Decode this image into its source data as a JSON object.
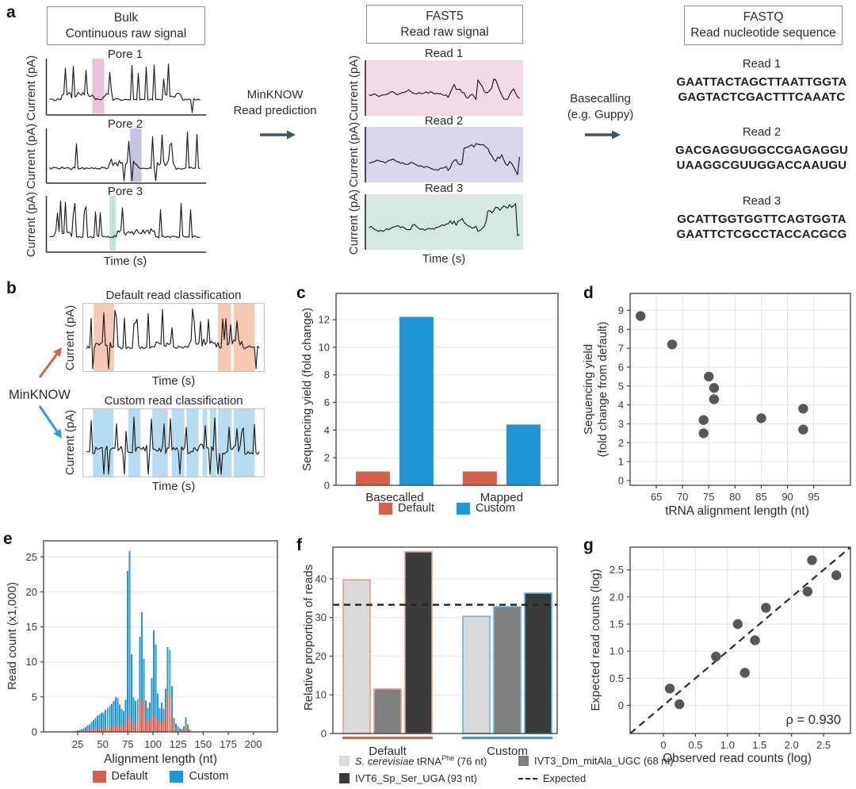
{
  "colors": {
    "default_red": "#D4604B",
    "custom_blue": "#1E97D4",
    "dot_gray": "#575757",
    "arrow_dark": "#3E5364",
    "arrow_red": "#D6604C",
    "arrow_blue": "#2D9FE0",
    "band_pink": "#EAC2DB",
    "bg_pink": "#F2DAE8",
    "band_purple": "#C5C4E1",
    "bg_purple": "#D7D6EB",
    "band_teal": "#C0E2D7",
    "bg_teal": "#D5E9E2",
    "band_salmon": "#F7C9B5",
    "band_lightblue": "#B5DCF2",
    "bar_light": "#D9D9D9",
    "bar_mid": "#7F7F7F",
    "bar_dark": "#3B3B3B",
    "outline_salmon": "#E89A89",
    "outline_blue": "#62B5E5",
    "trace": "#1C1C1C",
    "grid": "#E6E6E6",
    "axis": "#3F3F3F"
  },
  "panel_labels": {
    "a": "a",
    "b": "b",
    "c": "c",
    "d": "d",
    "e": "e",
    "f": "f",
    "g": "g"
  },
  "panel_a": {
    "bulk_box": [
      "Bulk",
      "Continuous raw signal"
    ],
    "fast5_box": [
      "FAST5",
      "Read raw signal"
    ],
    "fastq_box": [
      "FASTQ",
      "Read nucleotide sequence"
    ],
    "current_label": "Current (pA)",
    "time_label": "Time (s)",
    "pores": [
      {
        "title": "Pore 1"
      },
      {
        "title": "Pore 2"
      },
      {
        "title": "Pore 3"
      }
    ],
    "reads": [
      {
        "title": "Read 1"
      },
      {
        "title": "Read 2"
      },
      {
        "title": "Read 3"
      }
    ],
    "minknow": [
      "MinKNOW",
      "Read prediction"
    ],
    "basecalling": [
      "Basecalling",
      "(e.g. Guppy)"
    ],
    "fastq_reads": [
      {
        "title": "Read 1",
        "lines": [
          "GAATTACTAGCTTAATTGGTA",
          "GAGTACTCGACTTTCAAATC"
        ]
      },
      {
        "title": "Read 2",
        "lines": [
          "GACGAGGUGGCCGAGAGGU",
          "UAAGGCGUUGGACCAAUGU"
        ]
      },
      {
        "title": "Read 3",
        "lines": [
          "GCATTGGTGGTTCAGTGGTA",
          "GAATTCTCGCCTACCACGCG"
        ]
      }
    ]
  },
  "panel_b": {
    "default_title": "Default read classification",
    "custom_title": "Custom read classification",
    "minknow": "MinKNOW",
    "current_label": "Current (pA)",
    "time_label": "Time (s)"
  },
  "panel_f_legend": {
    "item1": {
      "species": "S. cerevisiae",
      "mid": " tRNA",
      "sup": "Phe",
      "suffix": " (76 nt)"
    },
    "item2": "IVT3_Dm_mitAla_UGC (68 nt)",
    "item3": "IVT6_Sp_Ser_UGA (93 nt)",
    "item4": "Expected"
  },
  "chart_data": [
    {
      "id": "c",
      "type": "bar",
      "ylabel": "Sequencing yield (fold change)",
      "categories": [
        "Basecalled",
        "Mapped"
      ],
      "series": [
        {
          "name": "Default",
          "color_key": "default_red",
          "values": [
            1.0,
            1.0
          ]
        },
        {
          "name": "Custom",
          "color_key": "custom_blue",
          "values": [
            12.2,
            4.4
          ]
        }
      ],
      "yticks": [
        0,
        2,
        4,
        6,
        8,
        10,
        12
      ],
      "ylim": [
        0,
        13.9
      ],
      "grid": "horizontal",
      "legend_position": "bottom"
    },
    {
      "id": "d",
      "type": "scatter",
      "xlabel": "tRNA alignment length (nt)",
      "ylabel_lines": [
        "Sequencing yield",
        "(fold change from default)"
      ],
      "points": [
        [
          62,
          8.7
        ],
        [
          68,
          7.2
        ],
        [
          74,
          3.2
        ],
        [
          74,
          2.5
        ],
        [
          75,
          5.5
        ],
        [
          76,
          4.9
        ],
        [
          76,
          4.3
        ],
        [
          85,
          3.3
        ],
        [
          93,
          3.8
        ],
        [
          93,
          2.7
        ]
      ],
      "xticks": [
        65,
        70,
        75,
        80,
        85,
        90,
        95
      ],
      "yticks": [
        0,
        1,
        2,
        3,
        4,
        5,
        6,
        7,
        8,
        9
      ],
      "xlim": [
        60,
        102
      ],
      "ylim": [
        -0.25,
        9.9
      ],
      "grid": "both"
    },
    {
      "id": "e",
      "type": "histogram",
      "ylabel": "Read count (x1,000)",
      "xlabel": "Alignment length (nt)",
      "bin_start": 20,
      "bin_width": 2,
      "series": [
        {
          "name": "Default",
          "color_key": "default_red",
          "values": [
            0.05,
            0.05,
            0.1,
            0.1,
            0.15,
            0.2,
            0.25,
            0.3,
            0.35,
            0.4,
            0.45,
            0.5,
            0.55,
            0.6,
            0.6,
            0.65,
            0.7,
            0.7,
            0.75,
            0.8,
            0.9,
            1.0,
            1.0,
            0.9,
            0.8,
            0.9,
            1.0,
            2.3,
            2.2,
            1.3,
            1.0,
            1.2,
            1.5,
            4.0,
            5.0,
            4.2,
            1.5,
            1.2,
            1.8,
            2.3,
            2.2,
            2.0,
            1.7,
            1.3,
            1.5,
            1.5,
            3.5,
            5.8,
            5.0,
            2.5,
            1.0,
            0.4,
            0.2,
            0.1,
            0.1,
            0.5,
            1.0,
            0.7,
            0.2
          ]
        },
        {
          "name": "Custom",
          "color_key": "custom_blue",
          "values": [
            0.1,
            0.15,
            0.2,
            0.3,
            0.4,
            0.5,
            0.7,
            0.9,
            1.1,
            1.4,
            1.7,
            2.0,
            2.3,
            2.5,
            2.7,
            2.8,
            3.1,
            3.4,
            3.7,
            4.0,
            4.4,
            4.9,
            4.8,
            3.9,
            3.3,
            3.0,
            4.6,
            23.0,
            25.8,
            11.1,
            4.9,
            4.4,
            4.7,
            13.6,
            17.1,
            10.4,
            4.5,
            3.4,
            4.2,
            7.7,
            14.5,
            12.5,
            5.5,
            3.4,
            4.2,
            3.3,
            6.2,
            12.1,
            11.7,
            6.5,
            2.0,
            1.2,
            0.8,
            0.5,
            0.4,
            0.8,
            2.1,
            1.1,
            0.4
          ]
        }
      ],
      "xticks": [
        25,
        50,
        75,
        100,
        125,
        150,
        175,
        200
      ],
      "yticks": [
        0,
        5,
        10,
        15,
        20,
        25
      ],
      "xlim": [
        -9,
        224
      ],
      "ylim": [
        0,
        27.3
      ],
      "grid": "horizontal"
    },
    {
      "id": "f",
      "type": "grouped_bar",
      "ylabel": "Relative proportion of reads",
      "groups": [
        "Default",
        "Custom"
      ],
      "series": [
        {
          "name": "S. cerevisiae tRNAPhe (76 nt)",
          "color_key": "bar_light",
          "values": [
            39.7,
            30.3
          ]
        },
        {
          "name": "IVT3_Dm_mitAla_UGC (68 nt)",
          "color_key": "bar_mid",
          "values": [
            11.5,
            32.8
          ]
        },
        {
          "name": "IVT6_Sp_Ser_UGA (93 nt)",
          "color_key": "bar_dark",
          "values": [
            47.0,
            36.3
          ]
        }
      ],
      "expected": 33.3,
      "expected_label": "Expected",
      "yticks": [
        0,
        10,
        20,
        30,
        40
      ],
      "ylim": [
        0,
        48.2
      ],
      "grid": "horizontal"
    },
    {
      "id": "g",
      "type": "scatter",
      "xlabel": "Observed read counts (log)",
      "ylabel": "Expected read counts (log)",
      "points": [
        [
          0.1,
          0.31
        ],
        [
          0.25,
          0.02
        ],
        [
          0.82,
          0.9
        ],
        [
          1.16,
          1.5
        ],
        [
          1.27,
          0.6
        ],
        [
          1.43,
          1.2
        ],
        [
          1.6,
          1.8
        ],
        [
          2.25,
          2.1
        ],
        [
          2.32,
          2.68
        ],
        [
          2.7,
          2.4
        ]
      ],
      "xticks": [
        0,
        0.5,
        1,
        1.5,
        2,
        2.5
      ],
      "yticks": [
        0,
        0.5,
        1,
        1.5,
        2,
        2.5
      ],
      "xtick_labels": [
        "0",
        "0.5",
        "1.0",
        "1.5",
        "2.0",
        "2.5"
      ],
      "ytick_labels": [
        "0",
        "0.5",
        "1.0",
        "1.5",
        "2.0",
        "2.5"
      ],
      "xlim": [
        -0.52,
        2.92
      ],
      "ylim": [
        -0.52,
        2.92
      ],
      "identity_line": true,
      "annotation": "ρ = 0.930",
      "grid": "both"
    }
  ]
}
